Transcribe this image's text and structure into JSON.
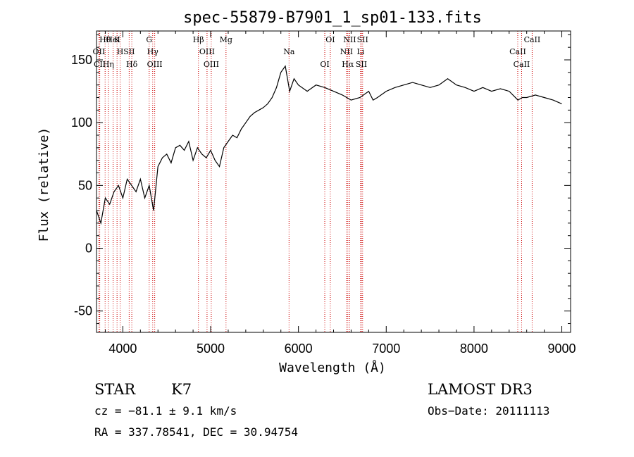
{
  "chart_data": {
    "type": "line",
    "title": "spec-55879-B7901_1_sp01-133.fits",
    "xlabel": "Wavelength (Å)",
    "ylabel": "Flux (relative)",
    "xlim": [
      3700,
      9100
    ],
    "ylim": [
      -67,
      173
    ],
    "x_ticks": [
      4000,
      5000,
      6000,
      7000,
      8000,
      9000
    ],
    "y_ticks": [
      -50,
      0,
      50,
      100,
      150
    ],
    "grid": false,
    "line_color": "#000000",
    "marker_color": "#cc0000",
    "series": [
      {
        "name": "flux",
        "x": [
          3700,
          3750,
          3800,
          3850,
          3900,
          3950,
          4000,
          4050,
          4100,
          4150,
          4200,
          4250,
          4300,
          4350,
          4400,
          4450,
          4500,
          4550,
          4600,
          4650,
          4700,
          4750,
          4800,
          4850,
          4900,
          4950,
          5000,
          5050,
          5100,
          5150,
          5200,
          5250,
          5300,
          5350,
          5400,
          5450,
          5500,
          5550,
          5600,
          5650,
          5700,
          5750,
          5800,
          5850,
          5900,
          5950,
          6000,
          6100,
          6200,
          6300,
          6400,
          6500,
          6550,
          6600,
          6700,
          6800,
          6850,
          6900,
          7000,
          7100,
          7200,
          7300,
          7400,
          7500,
          7600,
          7700,
          7800,
          7900,
          8000,
          8100,
          8200,
          8300,
          8400,
          8500,
          8550,
          8600,
          8700,
          8800,
          8900,
          9000
        ],
        "y": [
          30,
          20,
          40,
          35,
          45,
          50,
          40,
          55,
          50,
          45,
          55,
          40,
          50,
          30,
          65,
          72,
          75,
          68,
          80,
          82,
          78,
          85,
          70,
          80,
          75,
          72,
          78,
          70,
          65,
          80,
          85,
          90,
          88,
          95,
          100,
          105,
          108,
          110,
          112,
          115,
          120,
          128,
          140,
          145,
          125,
          135,
          130,
          125,
          130,
          128,
          125,
          122,
          120,
          118,
          120,
          125,
          118,
          120,
          125,
          128,
          130,
          132,
          130,
          128,
          130,
          135,
          130,
          128,
          125,
          128,
          125,
          127,
          125,
          118,
          120,
          120,
          122,
          120,
          118,
          115
        ]
      }
    ],
    "spectral_lines": [
      {
        "name": "Hθ",
        "wave": 3798
      },
      {
        "name": "OII",
        "wave": 3727
      },
      {
        "name": "CII",
        "wave": 3737
      },
      {
        "name": "K",
        "wave": 3934
      },
      {
        "name": "H",
        "wave": 3969
      },
      {
        "name": "Hη",
        "wave": 3835
      },
      {
        "name": "HeI",
        "wave": 3889
      },
      {
        "name": "SII",
        "wave": 4072
      },
      {
        "name": "Hδ",
        "wave": 4102
      },
      {
        "name": "G",
        "wave": 4300
      },
      {
        "name": "Hγ",
        "wave": 4340
      },
      {
        "name": "OIII",
        "wave": 4363
      },
      {
        "name": "Hβ",
        "wave": 4861
      },
      {
        "name": "OIII",
        "wave": 4959
      },
      {
        "name": "OIII",
        "wave": 5007
      },
      {
        "name": "Mg",
        "wave": 5175
      },
      {
        "name": "Na",
        "wave": 5893
      },
      {
        "name": "OI",
        "wave": 6300
      },
      {
        "name": "OI",
        "wave": 6363
      },
      {
        "name": "NII",
        "wave": 6548
      },
      {
        "name": "Hα",
        "wave": 6563
      },
      {
        "name": "NII",
        "wave": 6584
      },
      {
        "name": "Li",
        "wave": 6708
      },
      {
        "name": "SII",
        "wave": 6717
      },
      {
        "name": "SII",
        "wave": 6731
      },
      {
        "name": "CaII",
        "wave": 8498
      },
      {
        "name": "CaII",
        "wave": 8542
      },
      {
        "name": "CaII",
        "wave": 8662
      }
    ]
  },
  "info": {
    "class": "STAR",
    "subclass": "K7",
    "survey": "LAMOST DR3",
    "cz": "cz = −81.1 ± 9.1 km/s",
    "obs_date": "Obs−Date: 20111113",
    "coords": "RA = 337.78541, DEC =  30.94754"
  }
}
